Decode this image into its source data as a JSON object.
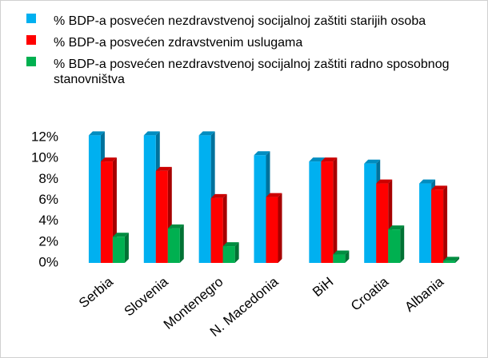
{
  "chart_data": {
    "type": "bar3d",
    "categories": [
      "Serbia",
      "Slovenia",
      "Montenegro",
      "N. Macedonia",
      "BiH",
      "Croatia",
      "Albania"
    ],
    "series": [
      {
        "name": "% BDP-a posvećen nezdravstvenoj socijalnoj zaštiti starijih osoba",
        "color": "#00b0f0",
        "values": [
          12.2,
          12.2,
          12.2,
          10.3,
          9.7,
          9.5,
          7.6
        ]
      },
      {
        "name": "% BDP-a posvećen zdravstvenim uslugama",
        "color": "#ff0000",
        "values": [
          9.7,
          8.8,
          6.2,
          6.3,
          9.7,
          7.6,
          7.0
        ]
      },
      {
        "name": "% BDP-a posvećen nezdravstvenoj socijalnoj zaštiti radno sposobnog stanovništva",
        "color": "#00b050",
        "values": [
          2.5,
          3.3,
          1.6,
          0,
          0.8,
          3.2,
          0.2
        ]
      }
    ],
    "ylim": [
      0,
      12
    ],
    "yticks": [
      {
        "value": 0,
        "label": "0%"
      },
      {
        "value": 2,
        "label": "2%"
      },
      {
        "value": 4,
        "label": "4%"
      },
      {
        "value": 6,
        "label": "6%"
      },
      {
        "value": 8,
        "label": "8%"
      },
      {
        "value": 10,
        "label": "10%"
      },
      {
        "value": 12,
        "label": "12%"
      }
    ],
    "legend": "top"
  }
}
